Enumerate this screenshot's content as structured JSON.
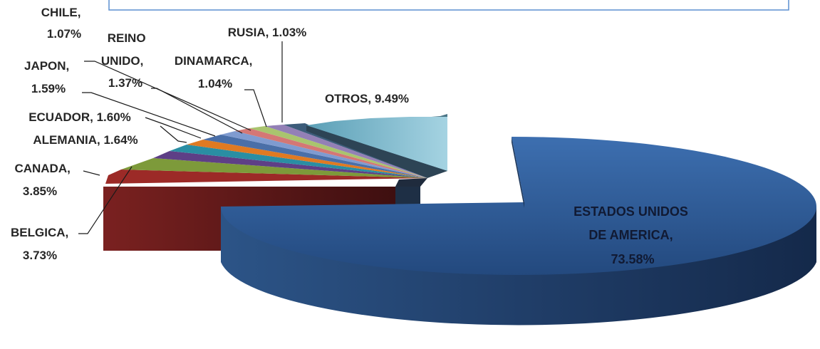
{
  "chart_data": {
    "type": "pie",
    "title": "",
    "slices": [
      {
        "label": "ESTADOS UNIDOS DE AMERICA",
        "value": 73.58,
        "text": "73.58%",
        "color": "#2f5c9a"
      },
      {
        "label": "BELGICA",
        "value": 3.73,
        "text": "3.73%",
        "color": "#9c2a27"
      },
      {
        "label": "CANADA",
        "value": 3.85,
        "text": "3.85%",
        "color": "#7d9a3a"
      },
      {
        "label": "ALEMANIA",
        "value": 1.64,
        "text": "1.64%",
        "color": "#5e3f86"
      },
      {
        "label": "ECUADOR",
        "value": 1.6,
        "text": "1.60%",
        "color": "#2a8ea3"
      },
      {
        "label": "JAPON",
        "value": 1.59,
        "text": "1.59%",
        "color": "#e07a22"
      },
      {
        "label": "REINO UNIDO",
        "value": 1.37,
        "text": "1.37%",
        "color": "#7f9bd0"
      },
      {
        "label": "CHILE",
        "value": 1.07,
        "text": "1.07%",
        "color": "#d47775"
      },
      {
        "label": "DINAMARCA",
        "value": 1.04,
        "text": "1.04%",
        "color": "#a9c46e"
      },
      {
        "label": "RUSIA",
        "value": 1.03,
        "text": "1.03%",
        "color": "#9380b6"
      },
      {
        "label": "OTROS",
        "value": 9.49,
        "text": "9.49%",
        "color": "#6fb3c9"
      }
    ],
    "labels": [
      {
        "key": "chile",
        "lines": [
          "CHILE,",
          "1.07%"
        ]
      },
      {
        "key": "reino-unido",
        "lines": [
          "REINO",
          "UNIDO,",
          "1.37%"
        ]
      },
      {
        "key": "rusia",
        "lines": [
          "RUSIA, 1.03%"
        ]
      },
      {
        "key": "dinamarca",
        "lines": [
          "DINAMARCA,",
          "1.04%"
        ]
      },
      {
        "key": "japon",
        "lines": [
          "JAPON,",
          "1.59%"
        ]
      },
      {
        "key": "otros",
        "lines": [
          "OTROS, 9.49%"
        ]
      },
      {
        "key": "ecuador",
        "lines": [
          "ECUADOR, 1.60%"
        ]
      },
      {
        "key": "alemania",
        "lines": [
          "ALEMANIA, 1.64%"
        ]
      },
      {
        "key": "canada",
        "lines": [
          "CANADA,",
          "3.85%"
        ]
      },
      {
        "key": "belgica",
        "lines": [
          "BELGICA,",
          "3.73%"
        ]
      },
      {
        "key": "usa",
        "lines": [
          "ESTADOS UNIDOS",
          "DE AMERICA,",
          "73.58%"
        ]
      }
    ],
    "legend": "none"
  }
}
